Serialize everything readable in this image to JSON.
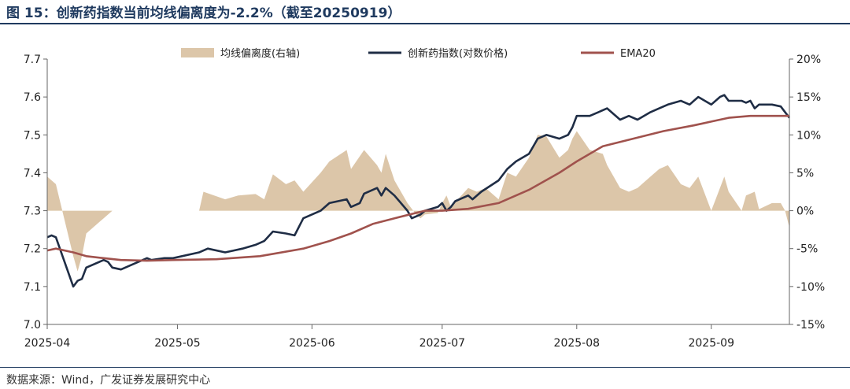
{
  "title": "图 15：创新药指数当前均线偏离度为-2.2%（截至20250919）",
  "source": "数据来源：Wind，广发证券发展研究中心",
  "colors": {
    "title": "#1f3a5f",
    "index_line": "#1f2d45",
    "ema_line": "#a0524d",
    "area": "#dcc6a9"
  },
  "chart_data": {
    "type": "line",
    "legend_position": "top",
    "grid": false,
    "x_start": "2025-04-01",
    "x_end": "2025-09-19",
    "x_ticks": [
      "2025-04-01",
      "2025-05-01",
      "2025-06-01",
      "2025-07-01",
      "2025-08-01",
      "2025-09-01"
    ],
    "x_tick_labels": [
      "2025-04",
      "2025-05",
      "2025-06",
      "2025-07",
      "2025-08",
      "2025-09"
    ],
    "y_left": {
      "lim": [
        7.0,
        7.7
      ],
      "ticks": [
        7.0,
        7.1,
        7.2,
        7.3,
        7.4,
        7.5,
        7.6,
        7.7
      ],
      "tick_labels": [
        "7.0",
        "7.1",
        "7.2",
        "7.3",
        "7.4",
        "7.5",
        "7.6",
        "7.7"
      ]
    },
    "y_right": {
      "lim": [
        -15,
        20
      ],
      "ticks": [
        -15,
        -10,
        -5,
        0,
        5,
        10,
        15,
        20
      ],
      "tick_labels": [
        "-15%",
        "-10%",
        "-5%",
        "0%",
        "5%",
        "10%",
        "15%",
        "20%"
      ]
    },
    "series": [
      {
        "name": "均线偏离度(右轴)",
        "kind": "area",
        "axis": "right",
        "points": [
          [
            "2025-04-01",
            4.5
          ],
          [
            "2025-04-03",
            3.5
          ],
          [
            "2025-04-07",
            -6
          ],
          [
            "2025-04-08",
            -8
          ],
          [
            "2025-04-09",
            -6
          ],
          [
            "2025-04-10",
            -3
          ],
          [
            "2025-04-14",
            -1
          ],
          [
            "2025-04-16",
            0
          ],
          [
            "2025-05-06",
            0
          ],
          [
            "2025-05-07",
            2.5
          ],
          [
            "2025-05-12",
            1.5
          ],
          [
            "2025-05-15",
            2
          ],
          [
            "2025-05-19",
            2.2
          ],
          [
            "2025-05-21",
            1.5
          ],
          [
            "2025-05-23",
            4.8
          ],
          [
            "2025-05-26",
            3.5
          ],
          [
            "2025-05-28",
            4
          ],
          [
            "2025-05-30",
            2.5
          ],
          [
            "2025-06-03",
            5
          ],
          [
            "2025-06-05",
            6.5
          ],
          [
            "2025-06-09",
            8
          ],
          [
            "2025-06-10",
            5.5
          ],
          [
            "2025-06-13",
            8
          ],
          [
            "2025-06-16",
            6
          ],
          [
            "2025-06-17",
            5
          ],
          [
            "2025-06-18",
            7.5
          ],
          [
            "2025-06-20",
            4
          ],
          [
            "2025-06-23",
            1
          ],
          [
            "2025-06-25",
            -0.5
          ],
          [
            "2025-06-26",
            -1
          ],
          [
            "2025-06-27",
            -0.5
          ],
          [
            "2025-06-30",
            -0.3
          ],
          [
            "2025-07-01",
            1
          ],
          [
            "2025-07-02",
            2
          ],
          [
            "2025-07-03",
            0.5
          ],
          [
            "2025-07-07",
            3
          ],
          [
            "2025-07-09",
            2.5
          ],
          [
            "2025-07-11",
            3
          ],
          [
            "2025-07-14",
            1.5
          ],
          [
            "2025-07-16",
            5
          ],
          [
            "2025-07-18",
            4.5
          ],
          [
            "2025-07-21",
            7
          ],
          [
            "2025-07-23",
            10
          ],
          [
            "2025-07-25",
            9.8
          ],
          [
            "2025-07-28",
            7
          ],
          [
            "2025-07-30",
            8
          ],
          [
            "2025-07-31",
            9.5
          ],
          [
            "2025-08-01",
            10.5
          ],
          [
            "2025-08-04",
            8
          ],
          [
            "2025-08-07",
            7.5
          ],
          [
            "2025-08-08",
            6
          ],
          [
            "2025-08-11",
            3
          ],
          [
            "2025-08-13",
            2.5
          ],
          [
            "2025-08-15",
            3
          ],
          [
            "2025-08-18",
            4.5
          ],
          [
            "2025-08-20",
            5.5
          ],
          [
            "2025-08-22",
            6
          ],
          [
            "2025-08-25",
            3.5
          ],
          [
            "2025-08-27",
            3
          ],
          [
            "2025-08-29",
            4.5
          ],
          [
            "2025-09-01",
            0
          ],
          [
            "2025-09-02",
            1.5
          ],
          [
            "2025-09-04",
            4.5
          ],
          [
            "2025-09-05",
            2.5
          ],
          [
            "2025-09-08",
            0
          ],
          [
            "2025-09-09",
            2
          ],
          [
            "2025-09-11",
            2.5
          ],
          [
            "2025-09-12",
            0.2
          ],
          [
            "2025-09-15",
            1
          ],
          [
            "2025-09-17",
            1
          ],
          [
            "2025-09-18",
            0
          ],
          [
            "2025-09-19",
            -2.2
          ]
        ]
      },
      {
        "name": "创新药指数(对数价格)",
        "kind": "line",
        "axis": "left",
        "points": [
          [
            "2025-04-01",
            7.23
          ],
          [
            "2025-04-02",
            7.235
          ],
          [
            "2025-04-03",
            7.23
          ],
          [
            "2025-04-07",
            7.1
          ],
          [
            "2025-04-08",
            7.115
          ],
          [
            "2025-04-09",
            7.12
          ],
          [
            "2025-04-10",
            7.15
          ],
          [
            "2025-04-14",
            7.17
          ],
          [
            "2025-04-15",
            7.165
          ],
          [
            "2025-04-16",
            7.15
          ],
          [
            "2025-04-18",
            7.145
          ],
          [
            "2025-04-22",
            7.165
          ],
          [
            "2025-04-24",
            7.175
          ],
          [
            "2025-04-25",
            7.17
          ],
          [
            "2025-04-28",
            7.175
          ],
          [
            "2025-04-30",
            7.175
          ],
          [
            "2025-05-06",
            7.19
          ],
          [
            "2025-05-08",
            7.2
          ],
          [
            "2025-05-12",
            7.19
          ],
          [
            "2025-05-14",
            7.195
          ],
          [
            "2025-05-16",
            7.2
          ],
          [
            "2025-05-19",
            7.21
          ],
          [
            "2025-05-21",
            7.22
          ],
          [
            "2025-05-23",
            7.245
          ],
          [
            "2025-05-26",
            7.24
          ],
          [
            "2025-05-28",
            7.235
          ],
          [
            "2025-05-30",
            7.28
          ],
          [
            "2025-06-03",
            7.3
          ],
          [
            "2025-06-05",
            7.32
          ],
          [
            "2025-06-09",
            7.33
          ],
          [
            "2025-06-10",
            7.31
          ],
          [
            "2025-06-12",
            7.32
          ],
          [
            "2025-06-13",
            7.345
          ],
          [
            "2025-06-16",
            7.36
          ],
          [
            "2025-06-17",
            7.34
          ],
          [
            "2025-06-18",
            7.36
          ],
          [
            "2025-06-20",
            7.34
          ],
          [
            "2025-06-23",
            7.3
          ],
          [
            "2025-06-24",
            7.28
          ],
          [
            "2025-06-26",
            7.29
          ],
          [
            "2025-06-27",
            7.3
          ],
          [
            "2025-06-30",
            7.31
          ],
          [
            "2025-07-01",
            7.32
          ],
          [
            "2025-07-02",
            7.3
          ],
          [
            "2025-07-03",
            7.31
          ],
          [
            "2025-07-04",
            7.325
          ],
          [
            "2025-07-07",
            7.34
          ],
          [
            "2025-07-08",
            7.33
          ],
          [
            "2025-07-10",
            7.35
          ],
          [
            "2025-07-14",
            7.38
          ],
          [
            "2025-07-16",
            7.41
          ],
          [
            "2025-07-18",
            7.43
          ],
          [
            "2025-07-21",
            7.45
          ],
          [
            "2025-07-23",
            7.49
          ],
          [
            "2025-07-25",
            7.5
          ],
          [
            "2025-07-28",
            7.49
          ],
          [
            "2025-07-30",
            7.5
          ],
          [
            "2025-07-31",
            7.52
          ],
          [
            "2025-08-01",
            7.55
          ],
          [
            "2025-08-04",
            7.55
          ],
          [
            "2025-08-06",
            7.56
          ],
          [
            "2025-08-08",
            7.57
          ],
          [
            "2025-08-11",
            7.54
          ],
          [
            "2025-08-13",
            7.55
          ],
          [
            "2025-08-15",
            7.54
          ],
          [
            "2025-08-18",
            7.56
          ],
          [
            "2025-08-20",
            7.57
          ],
          [
            "2025-08-22",
            7.58
          ],
          [
            "2025-08-25",
            7.59
          ],
          [
            "2025-08-27",
            7.58
          ],
          [
            "2025-08-29",
            7.6
          ],
          [
            "2025-09-01",
            7.58
          ],
          [
            "2025-09-03",
            7.6
          ],
          [
            "2025-09-04",
            7.605
          ],
          [
            "2025-09-05",
            7.59
          ],
          [
            "2025-09-08",
            7.59
          ],
          [
            "2025-09-09",
            7.585
          ],
          [
            "2025-09-10",
            7.59
          ],
          [
            "2025-09-11",
            7.57
          ],
          [
            "2025-09-12",
            7.58
          ],
          [
            "2025-09-15",
            7.58
          ],
          [
            "2025-09-17",
            7.575
          ],
          [
            "2025-09-18",
            7.56
          ],
          [
            "2025-09-19",
            7.545
          ]
        ]
      },
      {
        "name": "EMA20",
        "kind": "line",
        "axis": "left",
        "points": [
          [
            "2025-04-01",
            7.195
          ],
          [
            "2025-04-03",
            7.2
          ],
          [
            "2025-04-07",
            7.19
          ],
          [
            "2025-04-10",
            7.18
          ],
          [
            "2025-04-14",
            7.175
          ],
          [
            "2025-04-18",
            7.17
          ],
          [
            "2025-04-24",
            7.168
          ],
          [
            "2025-04-30",
            7.17
          ],
          [
            "2025-05-10",
            7.172
          ],
          [
            "2025-05-20",
            7.18
          ],
          [
            "2025-05-30",
            7.2
          ],
          [
            "2025-06-05",
            7.22
          ],
          [
            "2025-06-10",
            7.24
          ],
          [
            "2025-06-15",
            7.265
          ],
          [
            "2025-06-20",
            7.28
          ],
          [
            "2025-06-27",
            7.3
          ],
          [
            "2025-07-01",
            7.3
          ],
          [
            "2025-07-07",
            7.305
          ],
          [
            "2025-07-14",
            7.32
          ],
          [
            "2025-07-21",
            7.355
          ],
          [
            "2025-07-28",
            7.4
          ],
          [
            "2025-08-01",
            7.43
          ],
          [
            "2025-08-07",
            7.47
          ],
          [
            "2025-08-14",
            7.49
          ],
          [
            "2025-08-21",
            7.51
          ],
          [
            "2025-08-28",
            7.525
          ],
          [
            "2025-09-01",
            7.535
          ],
          [
            "2025-09-05",
            7.545
          ],
          [
            "2025-09-10",
            7.55
          ],
          [
            "2025-09-15",
            7.55
          ],
          [
            "2025-09-19",
            7.55
          ]
        ]
      }
    ]
  }
}
